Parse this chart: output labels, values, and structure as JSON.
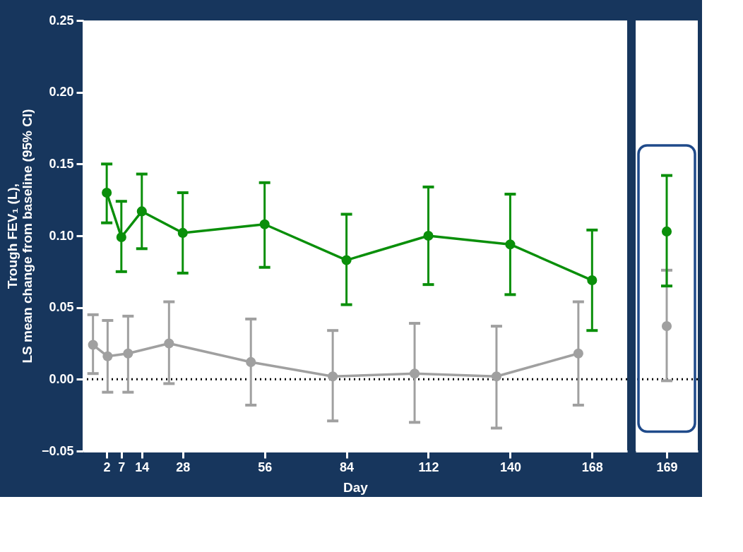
{
  "chart_data": [
    {
      "type": "line",
      "x": [
        2,
        7,
        14,
        28,
        56,
        84,
        112,
        140,
        168
      ],
      "xlim": [
        -6,
        180
      ],
      "xticks": [
        2,
        7,
        14,
        28,
        56,
        84,
        112,
        140,
        168
      ],
      "xlabel": "Day",
      "ylabel": "Trough FEV₁ (L),\nLS  mean change from baseline (95% CI)",
      "ylim": [
        -0.05,
        0.25
      ],
      "yticks": [
        -0.05,
        {
          "value": 0,
          "label": "0.00"
        },
        0.05,
        {
          "value": 0.1,
          "label": "0.10"
        },
        0.15,
        {
          "value": 0.2,
          "label": "0.20"
        },
        0.25
      ],
      "marker": "circle",
      "series": [
        {
          "color": "#0a8f0a",
          "values": [
            0.13,
            0.099,
            0.117,
            0.102,
            0.108,
            0.083,
            0.1,
            0.094,
            0.069
          ],
          "errors": [
            [
              0.109,
              0.15
            ],
            [
              0.075,
              0.124
            ],
            [
              0.091,
              0.143
            ],
            [
              0.074,
              0.13
            ],
            [
              0.078,
              0.137
            ],
            [
              0.052,
              0.115
            ],
            [
              0.066,
              0.134
            ],
            [
              0.059,
              0.129
            ],
            [
              0.034,
              0.104
            ]
          ]
        },
        {
          "color": "#a0a0a0",
          "x": [
            -2.7,
            2.3,
            9.3,
            23.3,
            51.3,
            79.3,
            107.3,
            135.3,
            163.3
          ],
          "values": [
            0.024,
            0.016,
            0.018,
            0.025,
            0.012,
            0.002,
            0.004,
            0.002,
            0.018
          ],
          "errors": [
            [
              0.004,
              0.045
            ],
            [
              -0.009,
              0.041
            ],
            [
              -0.009,
              0.044
            ],
            [
              -0.003,
              0.054
            ],
            [
              -0.018,
              0.042
            ],
            [
              -0.029,
              0.034
            ],
            [
              -0.03,
              0.039
            ],
            [
              -0.034,
              0.037
            ],
            [
              -0.018,
              0.054
            ]
          ]
        }
      ],
      "ref_lines": [
        {
          "axis": "y",
          "value": 0,
          "color": "#000000",
          "line_style": "dotted"
        }
      ]
    },
    {
      "type": "line",
      "categories": [
        "169"
      ],
      "tick_labels": "x",
      "ylim": [
        -0.05,
        0.25
      ],
      "marker": "circle",
      "series": [
        {
          "color": "#a0a0a0",
          "values": [
            0.037
          ],
          "errors": [
            [
              -0.001,
              0.076
            ]
          ]
        },
        {
          "color": "#0a8f0a",
          "values": [
            0.103
          ],
          "errors": [
            [
              0.065,
              0.142
            ]
          ]
        }
      ],
      "ref_lines": [
        {
          "axis": "y",
          "value": 0,
          "color": "#000000",
          "line_style": "dotted"
        }
      ]
    }
  ]
}
